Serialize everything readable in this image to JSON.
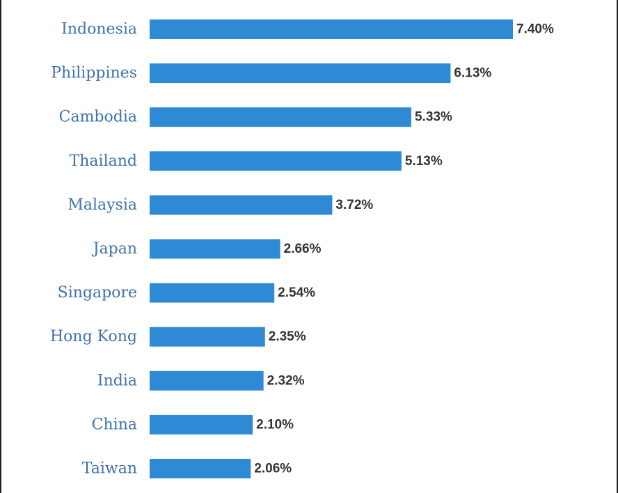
{
  "chart_data": {
    "type": "bar",
    "orientation": "horizontal",
    "categories": [
      "Indonesia",
      "Philippines",
      "Cambodia",
      "Thailand",
      "Malaysia",
      "Japan",
      "Singapore",
      "Hong Kong",
      "India",
      "China",
      "Taiwan"
    ],
    "values": [
      7.4,
      6.13,
      5.33,
      5.13,
      3.72,
      2.66,
      2.54,
      2.35,
      2.32,
      2.1,
      2.06
    ],
    "value_labels": [
      "7.40%",
      "6.13%",
      "5.33%",
      "5.13%",
      "3.72%",
      "2.66%",
      "2.54%",
      "2.35%",
      "2.32%",
      "2.10%",
      "2.06%"
    ],
    "title": "",
    "xlabel": "",
    "ylabel": "",
    "xlim": [
      0,
      7.4
    ],
    "grid": false,
    "legend": "none",
    "bar_color": "#2f8ad6",
    "label_color": "#3f72ad",
    "value_color": "#333333"
  }
}
